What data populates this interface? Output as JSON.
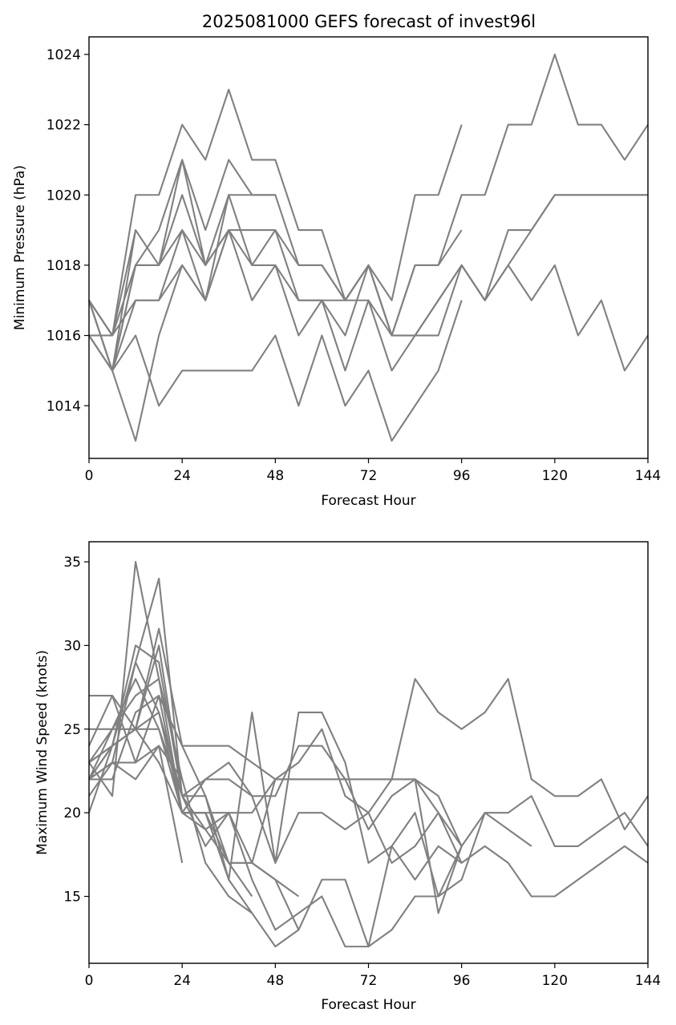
{
  "figure": {
    "title": "2025081000 GEFS forecast of invest96l"
  },
  "chart_data": [
    {
      "type": "line",
      "title": "2025081000 GEFS forecast of invest96l",
      "xlabel": "Forecast Hour",
      "ylabel": "Minimum Pressure (hPa)",
      "xlim": [
        0,
        144
      ],
      "ylim": [
        1012.5,
        1024.5
      ],
      "xticks": [
        0,
        24,
        48,
        72,
        96,
        120,
        144
      ],
      "yticks": [
        1014,
        1016,
        1018,
        1020,
        1022,
        1024
      ],
      "color": "#808080",
      "series": [
        {
          "x": [
            0,
            6,
            12,
            18,
            24,
            30,
            36,
            42,
            48,
            54,
            60,
            66,
            72,
            78,
            84,
            90,
            96,
            102,
            108,
            114,
            120,
            126,
            132,
            138,
            144
          ],
          "y": [
            1017,
            1015,
            1017,
            1017,
            1019,
            1017,
            1019,
            1018,
            1019,
            1017,
            1017,
            1017,
            1017,
            1016,
            1018,
            1018,
            1020,
            1020,
            1022,
            1022,
            1024,
            1022,
            1022,
            1021,
            1022
          ]
        },
        {
          "x": [
            0,
            6,
            12,
            18,
            24,
            30,
            36,
            42,
            48,
            54,
            60,
            66,
            72,
            78,
            84,
            90,
            96,
            102,
            108,
            114,
            120,
            126,
            132,
            138,
            144
          ],
          "y": [
            1016,
            1015,
            1018,
            1018,
            1019,
            1018,
            1019,
            1019,
            1019,
            1018,
            1018,
            1017,
            1018,
            1016,
            1016,
            1016,
            1018,
            1017,
            1018,
            1019,
            1020,
            1020,
            1020,
            1020,
            1020
          ]
        },
        {
          "x": [
            0,
            6,
            12,
            18,
            24,
            30,
            36,
            42,
            48,
            54,
            60,
            66,
            72,
            78,
            84,
            90,
            96,
            102,
            108,
            114,
            120,
            126,
            132,
            138,
            144
          ],
          "y": [
            1017,
            1016,
            1018,
            1018,
            1021,
            1018,
            1020,
            1018,
            1018,
            1017,
            1017,
            1016,
            1018,
            1016,
            1016,
            1017,
            1018,
            1017,
            1019,
            1019,
            1020,
            1020,
            1020,
            1020,
            1020
          ]
        },
        {
          "x": [
            0,
            6,
            12,
            18,
            24,
            30,
            36,
            42,
            48,
            54,
            60,
            66,
            72,
            78,
            84,
            90,
            96,
            102,
            108,
            114,
            120,
            126,
            132,
            138,
            144
          ],
          "y": [
            1017,
            1016,
            1017,
            1017,
            1018,
            1017,
            1019,
            1017,
            1018,
            1016,
            1017,
            1015,
            1017,
            1015,
            1016,
            1017,
            1018,
            1017,
            1018,
            1017,
            1018,
            1016,
            1017,
            1015,
            1016
          ]
        },
        {
          "x": [
            0,
            6,
            12,
            18,
            24,
            30,
            36,
            42,
            48,
            54,
            60,
            66,
            72,
            78,
            84,
            90,
            96
          ],
          "y": [
            1016,
            1016,
            1020,
            1020,
            1022,
            1021,
            1023,
            1021,
            1021,
            1019,
            1019,
            1017,
            1018,
            1017,
            1020,
            1020,
            1022
          ]
        },
        {
          "x": [
            0,
            6,
            12,
            18,
            24,
            30,
            36,
            42,
            48,
            54,
            60,
            66,
            72,
            78,
            84,
            90,
            96
          ],
          "y": [
            1016,
            1015,
            1018,
            1019,
            1021,
            1019,
            1021,
            1020,
            1020,
            1018,
            1018,
            1017,
            1018,
            1016,
            1018,
            1018,
            1019
          ]
        },
        {
          "x": [
            0,
            6,
            12,
            18,
            24,
            30,
            36,
            42,
            48,
            54,
            60,
            66,
            72,
            78,
            84,
            90,
            96
          ],
          "y": [
            1016,
            1015,
            1016,
            1014,
            1015,
            1015,
            1015,
            1015,
            1016,
            1014,
            1016,
            1014,
            1015,
            1013,
            1014,
            1015,
            1017
          ]
        },
        {
          "x": [
            0,
            6,
            12,
            18,
            24,
            30,
            36,
            42,
            48
          ],
          "y": [
            1017,
            1015,
            1013,
            1016,
            1018,
            1017,
            1020,
            1020,
            1020
          ]
        },
        {
          "x": [
            0,
            6,
            12,
            18,
            24,
            30,
            36
          ],
          "y": [
            1017,
            1015,
            1019,
            1018,
            1020,
            1018,
            1019
          ]
        },
        {
          "x": [
            0,
            6,
            12
          ],
          "y": [
            1017,
            1016,
            1019
          ]
        }
      ]
    },
    {
      "type": "line",
      "title": "",
      "xlabel": "Forecast Hour",
      "ylabel": "Maximum Wind Speed (knots)",
      "xlim": [
        0,
        144
      ],
      "ylim": [
        11.0,
        36.2
      ],
      "xticks": [
        0,
        24,
        48,
        72,
        96,
        120,
        144
      ],
      "yticks": [
        15,
        20,
        25,
        30,
        35
      ],
      "color": "#808080",
      "series": [
        {
          "x": [
            0,
            6,
            12,
            18,
            24,
            30,
            36,
            42,
            48,
            54,
            60,
            66,
            72,
            78,
            84,
            90,
            96,
            102,
            108,
            114,
            120,
            126,
            132,
            138,
            144
          ],
          "y": [
            22,
            23,
            23,
            27,
            24,
            24,
            24,
            23,
            22,
            22,
            22,
            22,
            22,
            22,
            28,
            26,
            25,
            26,
            28,
            22,
            21,
            21,
            22,
            19,
            21
          ]
        },
        {
          "x": [
            0,
            6,
            12,
            18,
            24,
            30,
            36,
            42,
            48,
            54,
            60,
            66,
            72,
            78,
            84,
            90,
            96,
            102,
            108,
            114,
            120,
            126,
            132,
            138,
            144
          ],
          "y": [
            23,
            24,
            25,
            25,
            20,
            20,
            20,
            20,
            22,
            23,
            25,
            21,
            20,
            17,
            18,
            20,
            17,
            18,
            17,
            15,
            15,
            16,
            17,
            18,
            17
          ]
        },
        {
          "x": [
            0,
            6,
            12,
            18,
            24,
            30,
            36,
            42,
            48,
            54,
            60,
            66,
            72,
            78,
            84,
            90,
            96,
            102,
            108,
            114,
            120,
            126,
            132,
            138,
            144
          ],
          "y": [
            22,
            22,
            26,
            27,
            20,
            19,
            20,
            16,
            13,
            14,
            15,
            12,
            12,
            13,
            15,
            15,
            16,
            20,
            20,
            21,
            18,
            18,
            19,
            20,
            18
          ]
        },
        {
          "x": [
            0,
            6,
            12,
            18,
            24,
            30,
            36,
            42,
            48,
            54,
            60,
            66,
            72,
            78,
            84,
            90,
            96,
            102,
            108,
            114
          ],
          "y": [
            20,
            24,
            29,
            26,
            20,
            22,
            22,
            21,
            17,
            20,
            20,
            19,
            20,
            22,
            22,
            21,
            18,
            20,
            19,
            18
          ]
        },
        {
          "x": [
            0,
            6,
            12,
            18,
            24,
            30,
            36,
            42,
            48,
            54,
            60,
            66,
            72,
            78,
            84,
            90,
            96
          ],
          "y": [
            22,
            24,
            30,
            29,
            21,
            22,
            23,
            21,
            21,
            24,
            24,
            22,
            19,
            21,
            22,
            14,
            18
          ]
        },
        {
          "x": [
            0,
            6,
            12,
            18,
            24,
            30,
            36,
            42,
            48,
            54,
            60,
            66,
            72,
            78,
            84,
            90,
            96
          ],
          "y": [
            25,
            25,
            25,
            30,
            21,
            18,
            20,
            17,
            22,
            22,
            22,
            22,
            22,
            22,
            22,
            20,
            18
          ]
        },
        {
          "x": [
            0,
            6,
            12,
            18,
            24,
            30,
            36,
            42,
            48,
            54,
            60,
            66,
            72,
            78,
            84,
            90,
            96
          ],
          "y": [
            24,
            27,
            23,
            24,
            22,
            17,
            15,
            14,
            12,
            13,
            16,
            16,
            12,
            18,
            20,
            15,
            18
          ]
        },
        {
          "x": [
            0,
            6,
            12,
            18,
            24,
            30,
            36,
            42,
            48,
            54,
            60,
            66,
            72,
            78,
            84,
            90,
            96
          ],
          "y": [
            27,
            27,
            25,
            31,
            24,
            21,
            16,
            26,
            17,
            26,
            26,
            23,
            17,
            18,
            16,
            18,
            17
          ]
        },
        {
          "x": [
            0,
            6,
            12,
            18,
            24,
            30,
            36,
            42,
            48,
            54
          ],
          "y": [
            23,
            24,
            25,
            23,
            20,
            20,
            17,
            17,
            16,
            15
          ]
        },
        {
          "x": [
            0,
            6,
            12,
            18,
            24,
            30,
            36,
            42,
            48,
            54
          ],
          "y": [
            23,
            25,
            28,
            25,
            21,
            21,
            17,
            17,
            16,
            13
          ]
        },
        {
          "x": [
            0,
            6,
            12,
            18,
            24,
            30,
            36,
            42
          ],
          "y": [
            22,
            24,
            25,
            26,
            21,
            19,
            17,
            15
          ]
        },
        {
          "x": [
            0,
            6,
            12,
            18,
            24,
            30,
            36,
            42
          ],
          "y": [
            22,
            25,
            27,
            28,
            20,
            20,
            16,
            14
          ]
        },
        {
          "x": [
            0,
            6,
            12,
            18,
            24
          ],
          "y": [
            23,
            21,
            35,
            28,
            22
          ]
        },
        {
          "x": [
            0,
            6,
            12,
            18,
            24
          ],
          "y": [
            21,
            23,
            29,
            34,
            21
          ]
        },
        {
          "x": [
            0,
            6,
            12,
            18,
            24
          ],
          "y": [
            22,
            23,
            22,
            24,
            17
          ]
        }
      ]
    }
  ]
}
